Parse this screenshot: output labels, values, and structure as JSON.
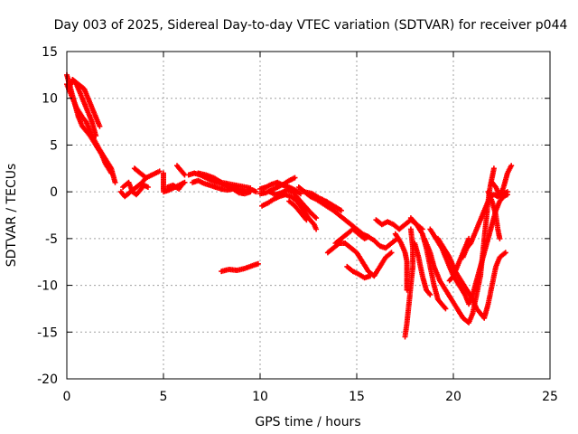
{
  "chart_data": {
    "type": "scatter",
    "title": "Day 003 of 2025, Sidereal Day-to-day VTEC variation (SDTVAR) for receiver p044",
    "xlabel": "GPS time / hours",
    "ylabel": "SDTVAR / TECUs",
    "xlim": [
      0,
      25
    ],
    "ylim": [
      -20,
      15
    ],
    "xticks": [
      "0",
      "5",
      "10",
      "15",
      "20",
      "25"
    ],
    "yticks": [
      "15",
      "10",
      "5",
      "0",
      "-5",
      "-10",
      "-15",
      "-20"
    ],
    "grid": true,
    "marker": "plus",
    "color": "#ff0000",
    "tracks": [
      [
        [
          0.0,
          12.5
        ],
        [
          0.2,
          11.0
        ],
        [
          0.4,
          9.5
        ],
        [
          0.6,
          8.0
        ],
        [
          0.8,
          7.0
        ],
        [
          1.0,
          6.5
        ],
        [
          1.2,
          6.0
        ],
        [
          1.5,
          5.0
        ],
        [
          1.8,
          4.0
        ],
        [
          2.0,
          3.0
        ],
        [
          2.3,
          2.0
        ]
      ],
      [
        [
          0.0,
          11.5
        ],
        [
          0.2,
          10.5
        ],
        [
          0.5,
          9.0
        ],
        [
          0.8,
          8.0
        ],
        [
          1.0,
          7.5
        ],
        [
          1.3,
          6.0
        ],
        [
          1.7,
          4.5
        ],
        [
          2.0,
          3.5
        ],
        [
          2.3,
          2.5
        ],
        [
          2.5,
          1.0
        ]
      ],
      [
        [
          0.1,
          11.0
        ],
        [
          0.3,
          12.0
        ],
        [
          0.5,
          11.5
        ],
        [
          0.7,
          10.5
        ],
        [
          0.9,
          9.5
        ],
        [
          1.1,
          8.5
        ],
        [
          1.3,
          7.5
        ],
        [
          1.5,
          6.0
        ]
      ],
      [
        [
          0.3,
          12.0
        ],
        [
          0.6,
          11.5
        ],
        [
          0.9,
          11.0
        ],
        [
          1.1,
          10.0
        ],
        [
          1.3,
          9.0
        ],
        [
          1.5,
          8.0
        ],
        [
          1.7,
          7.0
        ]
      ],
      [
        [
          2.8,
          0.0
        ],
        [
          3.0,
          -0.5
        ],
        [
          3.3,
          0.0
        ],
        [
          3.6,
          0.5
        ],
        [
          3.9,
          1.0
        ],
        [
          4.1,
          1.5
        ]
      ],
      [
        [
          2.9,
          0.5
        ],
        [
          3.2,
          1.0
        ],
        [
          3.4,
          0.0
        ],
        [
          3.6,
          -0.3
        ],
        [
          3.8,
          0.2
        ],
        [
          4.0,
          0.7
        ],
        [
          4.2,
          0.5
        ]
      ],
      [
        [
          3.5,
          2.5
        ],
        [
          3.8,
          2.0
        ],
        [
          4.1,
          1.5
        ],
        [
          4.4,
          1.8
        ],
        [
          4.8,
          2.2
        ]
      ],
      [
        [
          5.0,
          2.0
        ],
        [
          5.0,
          1.0
        ],
        [
          5.0,
          0.2
        ]
      ],
      [
        [
          5.0,
          0.0
        ],
        [
          5.3,
          0.2
        ],
        [
          5.6,
          0.5
        ],
        [
          5.9,
          0.8
        ],
        [
          6.1,
          1.0
        ]
      ],
      [
        [
          5.2,
          0.5
        ],
        [
          5.5,
          0.7
        ],
        [
          5.8,
          0.3
        ],
        [
          6.0,
          0.9
        ]
      ],
      [
        [
          5.7,
          2.8
        ],
        [
          5.9,
          2.3
        ],
        [
          6.1,
          1.8
        ]
      ],
      [
        [
          6.3,
          1.8
        ],
        [
          6.6,
          2.0
        ],
        [
          6.9,
          1.8
        ],
        [
          7.2,
          1.5
        ],
        [
          7.5,
          1.2
        ],
        [
          7.8,
          1.0
        ],
        [
          8.1,
          0.8
        ],
        [
          8.4,
          0.5
        ],
        [
          8.7,
          0.4
        ],
        [
          9.0,
          0.2
        ],
        [
          9.3,
          0.0
        ],
        [
          9.6,
          0.2
        ],
        [
          9.8,
          0.0
        ]
      ],
      [
        [
          6.5,
          1.0
        ],
        [
          6.8,
          1.2
        ],
        [
          7.1,
          0.9
        ],
        [
          7.4,
          0.7
        ],
        [
          7.7,
          0.5
        ],
        [
          8.0,
          0.3
        ],
        [
          8.3,
          0.2
        ],
        [
          8.6,
          0.3
        ],
        [
          8.9,
          -0.1
        ],
        [
          9.2,
          -0.2
        ],
        [
          9.5,
          0.0
        ]
      ],
      [
        [
          6.8,
          2.0
        ],
        [
          7.2,
          1.8
        ],
        [
          7.6,
          1.5
        ],
        [
          8.0,
          1.0
        ],
        [
          8.5,
          0.8
        ],
        [
          9.0,
          0.6
        ],
        [
          9.5,
          0.4
        ]
      ],
      [
        [
          10.0,
          -0.2
        ],
        [
          10.3,
          -0.1
        ],
        [
          10.6,
          0.2
        ],
        [
          10.9,
          0.5
        ],
        [
          11.2,
          0.8
        ],
        [
          11.5,
          1.2
        ],
        [
          11.8,
          1.5
        ]
      ],
      [
        [
          10.0,
          0.3
        ],
        [
          10.3,
          0.5
        ],
        [
          10.6,
          0.8
        ],
        [
          10.9,
          1.0
        ],
        [
          11.2,
          0.7
        ],
        [
          11.5,
          0.5
        ],
        [
          11.8,
          0.2
        ],
        [
          12.1,
          -0.2
        ]
      ],
      [
        [
          10.1,
          -1.5
        ],
        [
          10.4,
          -1.2
        ],
        [
          10.7,
          -0.8
        ],
        [
          11.0,
          -0.5
        ],
        [
          11.3,
          -0.3
        ],
        [
          11.6,
          -0.5
        ],
        [
          11.9,
          -1.0
        ],
        [
          12.2,
          -1.8
        ],
        [
          12.5,
          -2.8
        ],
        [
          12.8,
          -3.5
        ],
        [
          12.9,
          -4.0
        ]
      ],
      [
        [
          10.5,
          0.0
        ],
        [
          10.8,
          -0.3
        ],
        [
          11.1,
          -0.1
        ],
        [
          11.4,
          0.2
        ],
        [
          11.7,
          0.0
        ],
        [
          12.0,
          -0.8
        ],
        [
          12.3,
          -1.5
        ],
        [
          12.6,
          -2.2
        ],
        [
          12.9,
          -2.8
        ]
      ],
      [
        [
          11.5,
          -1.0
        ],
        [
          11.8,
          -1.5
        ],
        [
          12.0,
          -2.0
        ],
        [
          12.2,
          -2.5
        ],
        [
          12.4,
          -3.0
        ]
      ],
      [
        [
          12.3,
          0.0
        ],
        [
          12.6,
          -0.5
        ],
        [
          12.9,
          -0.8
        ],
        [
          13.2,
          -1.2
        ],
        [
          13.5,
          -1.6
        ],
        [
          13.8,
          -2.0
        ],
        [
          14.1,
          -2.5
        ],
        [
          14.4,
          -3.0
        ],
        [
          14.7,
          -3.5
        ],
        [
          15.0,
          -4.0
        ],
        [
          15.3,
          -4.5
        ],
        [
          15.6,
          -4.8
        ]
      ],
      [
        [
          12.0,
          0.5
        ],
        [
          12.3,
          0.0
        ],
        [
          12.7,
          -0.2
        ],
        [
          13.0,
          -0.6
        ],
        [
          13.4,
          -1.0
        ],
        [
          13.8,
          -1.5
        ],
        [
          14.2,
          -2.0
        ]
      ],
      [
        [
          13.9,
          -5.5
        ],
        [
          14.2,
          -5.0
        ],
        [
          14.5,
          -4.5
        ],
        [
          14.8,
          -4.0
        ],
        [
          15.1,
          -4.5
        ],
        [
          15.4,
          -5.0
        ],
        [
          15.6,
          -4.8
        ],
        [
          15.9,
          -5.2
        ],
        [
          16.2,
          -5.8
        ],
        [
          16.5,
          -6.0
        ],
        [
          16.8,
          -5.5
        ],
        [
          17.1,
          -5.0
        ]
      ],
      [
        [
          13.5,
          -6.5
        ],
        [
          13.8,
          -6.0
        ],
        [
          14.1,
          -5.5
        ],
        [
          14.4,
          -5.5
        ],
        [
          14.7,
          -6.0
        ],
        [
          15.0,
          -6.5
        ],
        [
          15.3,
          -7.5
        ],
        [
          15.6,
          -8.5
        ],
        [
          15.9,
          -9.0
        ],
        [
          16.2,
          -8.0
        ],
        [
          16.5,
          -7.0
        ],
        [
          16.8,
          -6.5
        ]
      ],
      [
        [
          14.5,
          -8.0
        ],
        [
          14.8,
          -8.5
        ],
        [
          15.1,
          -8.8
        ],
        [
          15.4,
          -9.2
        ],
        [
          15.7,
          -9.0
        ]
      ],
      [
        [
          16.0,
          -3.0
        ],
        [
          16.3,
          -3.5
        ],
        [
          16.6,
          -3.2
        ],
        [
          16.9,
          -3.5
        ],
        [
          17.2,
          -4.0
        ],
        [
          17.5,
          -3.5
        ],
        [
          17.8,
          -3.0
        ],
        [
          18.1,
          -3.5
        ],
        [
          18.4,
          -4.0
        ]
      ],
      [
        [
          17.0,
          -4.5
        ],
        [
          17.3,
          -5.5
        ],
        [
          17.5,
          -6.5
        ],
        [
          17.6,
          -7.5
        ],
        [
          17.6,
          -8.5
        ],
        [
          17.6,
          -9.5
        ],
        [
          17.6,
          -10.5
        ]
      ],
      [
        [
          17.8,
          -4.0
        ],
        [
          17.9,
          -6.0
        ],
        [
          17.9,
          -8.0
        ],
        [
          17.8,
          -10.0
        ],
        [
          17.7,
          -12.0
        ],
        [
          17.6,
          -14.0
        ],
        [
          17.5,
          -15.5
        ]
      ],
      [
        [
          17.8,
          -2.8
        ],
        [
          18.1,
          -3.5
        ],
        [
          18.4,
          -4.5
        ],
        [
          18.6,
          -6.0
        ],
        [
          18.8,
          -8.0
        ],
        [
          19.0,
          -10.0
        ],
        [
          19.2,
          -11.5
        ],
        [
          19.4,
          -12.0
        ],
        [
          19.6,
          -12.5
        ]
      ],
      [
        [
          18.0,
          -5.5
        ],
        [
          18.2,
          -7.0
        ],
        [
          18.4,
          -9.0
        ],
        [
          18.6,
          -10.5
        ],
        [
          18.8,
          -11.0
        ]
      ],
      [
        [
          18.5,
          -5.0
        ],
        [
          18.8,
          -6.5
        ],
        [
          19.0,
          -8.0
        ],
        [
          19.3,
          -9.5
        ],
        [
          19.6,
          -10.5
        ],
        [
          19.9,
          -11.5
        ],
        [
          20.2,
          -12.5
        ],
        [
          20.5,
          -13.5
        ],
        [
          20.8,
          -14.0
        ],
        [
          21.0,
          -13.0
        ],
        [
          21.2,
          -11.0
        ],
        [
          21.4,
          -9.0
        ],
        [
          21.5,
          -7.0
        ],
        [
          21.6,
          -5.0
        ],
        [
          21.7,
          -3.0
        ],
        [
          21.8,
          -1.0
        ],
        [
          21.9,
          0.5
        ],
        [
          22.0,
          1.5
        ],
        [
          22.1,
          2.5
        ]
      ],
      [
        [
          18.8,
          -4.0
        ],
        [
          19.1,
          -5.0
        ],
        [
          19.4,
          -6.0
        ],
        [
          19.7,
          -7.5
        ],
        [
          20.0,
          -9.0
        ],
        [
          20.3,
          -10.0
        ],
        [
          20.6,
          -11.0
        ],
        [
          20.8,
          -12.0
        ],
        [
          21.0,
          -11.0
        ],
        [
          21.2,
          -9.5
        ],
        [
          21.4,
          -8.0
        ],
        [
          21.6,
          -6.5
        ],
        [
          21.8,
          -5.0
        ],
        [
          22.0,
          -3.5
        ],
        [
          22.2,
          -2.0
        ],
        [
          22.4,
          -1.0
        ],
        [
          22.6,
          -0.5
        ],
        [
          22.8,
          -0.3
        ]
      ],
      [
        [
          19.2,
          -5.0
        ],
        [
          19.5,
          -6.0
        ],
        [
          19.8,
          -7.0
        ],
        [
          20.1,
          -8.5
        ],
        [
          20.4,
          -9.5
        ],
        [
          20.7,
          -10.5
        ],
        [
          21.0,
          -11.5
        ],
        [
          21.2,
          -12.5
        ],
        [
          21.4,
          -13.0
        ],
        [
          21.6,
          -13.5
        ],
        [
          21.8,
          -12.0
        ],
        [
          22.0,
          -10.0
        ],
        [
          22.2,
          -8.0
        ],
        [
          22.4,
          -7.0
        ],
        [
          22.7,
          -6.5
        ]
      ],
      [
        [
          20.5,
          -7.0
        ],
        [
          20.7,
          -6.0
        ],
        [
          20.9,
          -5.5
        ],
        [
          21.1,
          -4.5
        ],
        [
          21.3,
          -3.5
        ],
        [
          21.5,
          -2.5
        ],
        [
          21.7,
          -1.5
        ],
        [
          21.9,
          -0.5
        ],
        [
          22.1,
          -0.3
        ],
        [
          22.3,
          -0.5
        ],
        [
          22.5,
          -0.3
        ],
        [
          22.8,
          0.0
        ]
      ],
      [
        [
          19.8,
          -9.5
        ],
        [
          20.0,
          -9.0
        ],
        [
          20.2,
          -8.0
        ],
        [
          20.4,
          -7.0
        ],
        [
          20.6,
          -6.0
        ],
        [
          20.8,
          -5.0
        ]
      ],
      [
        [
          22.0,
          1.0
        ],
        [
          22.2,
          0.5
        ],
        [
          22.4,
          -0.5
        ],
        [
          22.6,
          0.5
        ],
        [
          22.8,
          2.0
        ],
        [
          23.0,
          2.8
        ]
      ],
      [
        [
          21.8,
          0.0
        ],
        [
          22.0,
          -1.0
        ],
        [
          22.2,
          -2.5
        ],
        [
          22.3,
          -4.0
        ],
        [
          22.4,
          -5.0
        ]
      ],
      [
        [
          8.0,
          -8.5
        ],
        [
          8.4,
          -8.3
        ],
        [
          8.8,
          -8.4
        ],
        [
          9.2,
          -8.2
        ],
        [
          9.6,
          -7.9
        ],
        [
          9.9,
          -7.7
        ]
      ]
    ]
  }
}
